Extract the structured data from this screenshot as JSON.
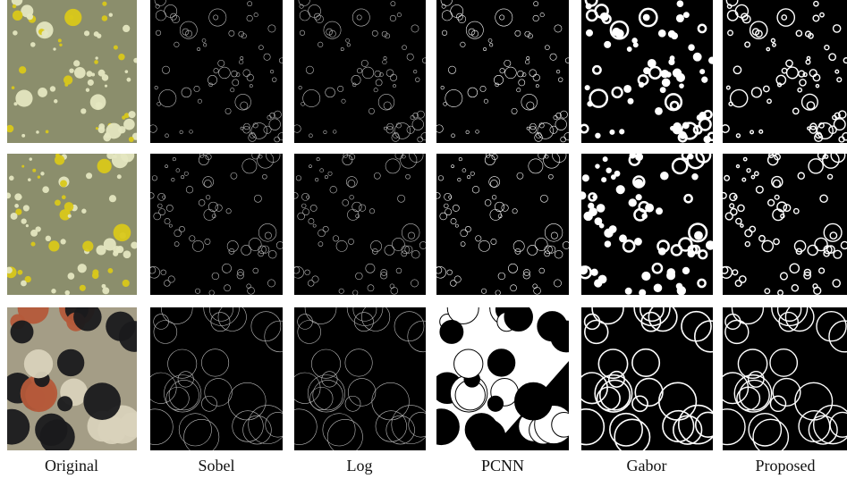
{
  "figure": {
    "columns": [
      "Original",
      "Sobel",
      "Log",
      "PCNN",
      "Gabor",
      "Proposed"
    ]
  }
}
